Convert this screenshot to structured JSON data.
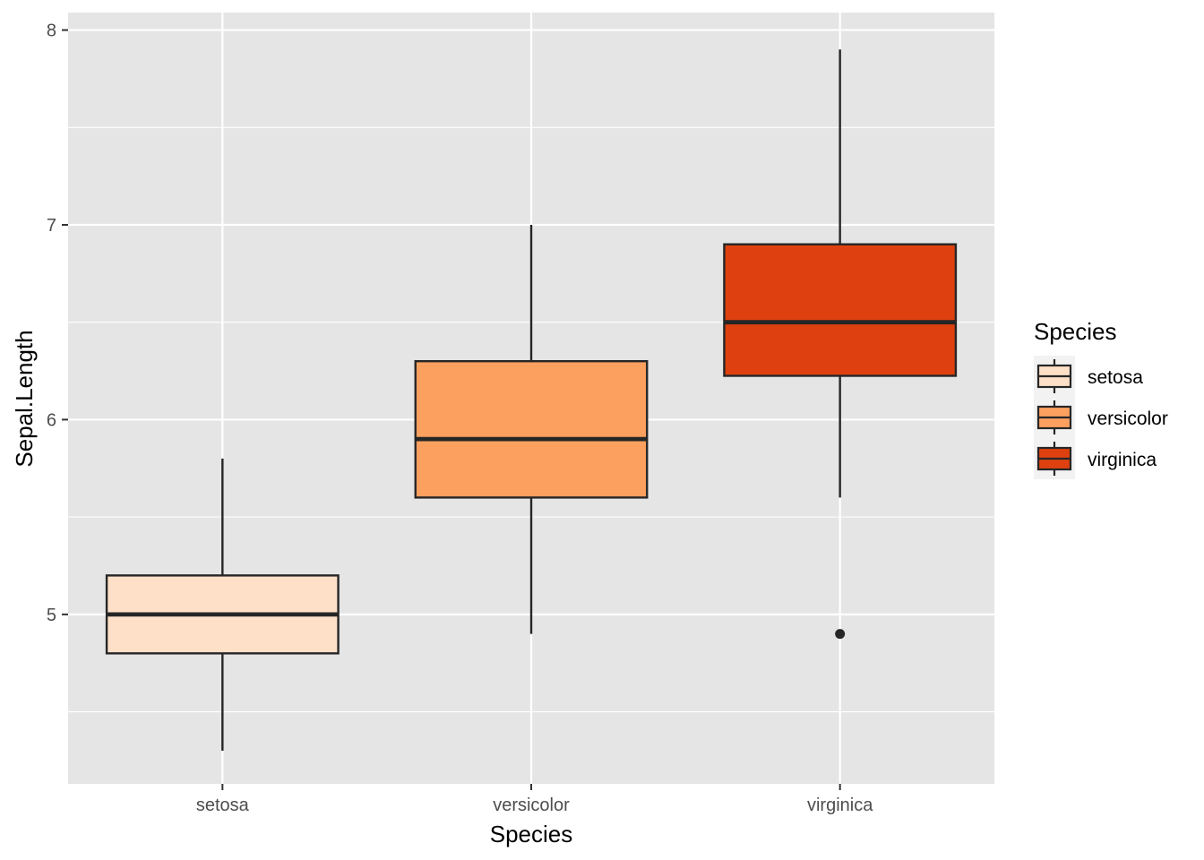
{
  "chart_data": {
    "type": "boxplot",
    "title": "",
    "xlabel": "Species",
    "ylabel": "Sepal.Length",
    "ylim": [
      4.13,
      8.09
    ],
    "y_ticks": [
      5,
      6,
      7,
      8
    ],
    "y_minor_ticks": [
      4.5,
      5.5,
      6.5,
      7.5
    ],
    "grid": true,
    "legend": {
      "title": "Species",
      "placement": "right"
    },
    "categories": [
      "setosa",
      "versicolor",
      "virginica"
    ],
    "series": [
      {
        "name": "setosa",
        "color": "#FEE0C8",
        "lower_whisker": 4.3,
        "q1": 4.8,
        "median": 5.0,
        "q3": 5.2,
        "upper_whisker": 5.8,
        "outliers": []
      },
      {
        "name": "versicolor",
        "color": "#FBA05F",
        "lower_whisker": 4.9,
        "q1": 5.6,
        "median": 5.9,
        "q3": 6.3,
        "upper_whisker": 7.0,
        "outliers": []
      },
      {
        "name": "virginica",
        "color": "#DE410F",
        "lower_whisker": 5.6,
        "q1": 6.225,
        "median": 6.5,
        "q3": 6.9,
        "upper_whisker": 7.9,
        "outliers": [
          4.9
        ]
      }
    ]
  }
}
